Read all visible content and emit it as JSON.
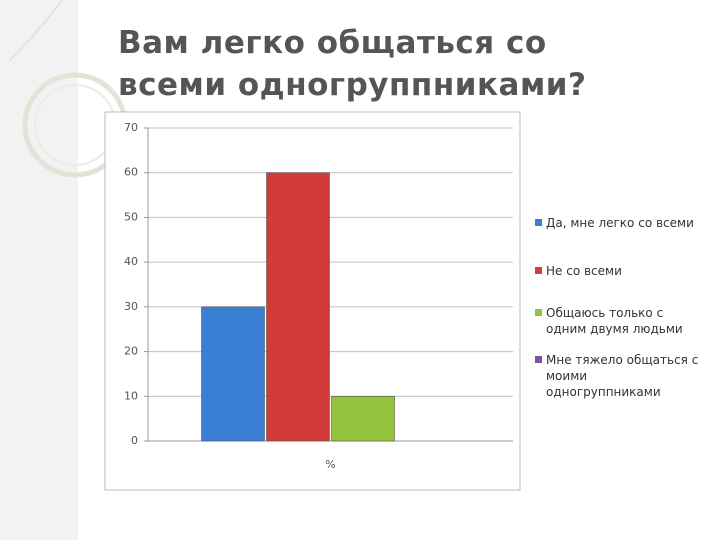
{
  "chart_data": {
    "type": "bar",
    "title": "Вам легко общаться со всеми одногруппниками?",
    "categories": [
      "%"
    ],
    "series": [
      {
        "name": "Да, мне легко со всеми",
        "color": "#3b7fd4",
        "values": [
          30
        ]
      },
      {
        "name": "Не со всеми",
        "color": "#d23c38",
        "values": [
          60
        ]
      },
      {
        "name": "Общаюсь только с одним двумя людьми",
        "color": "#93c23c",
        "values": [
          10
        ]
      },
      {
        "name": "Мне тяжело общаться с моими одногруппниками",
        "color": "#7a55a6",
        "values": [
          0
        ]
      }
    ],
    "ylim": [
      0,
      70
    ],
    "yticks": [
      0,
      10,
      20,
      30,
      40,
      50,
      60,
      70
    ],
    "grid": true,
    "legend": "right"
  }
}
